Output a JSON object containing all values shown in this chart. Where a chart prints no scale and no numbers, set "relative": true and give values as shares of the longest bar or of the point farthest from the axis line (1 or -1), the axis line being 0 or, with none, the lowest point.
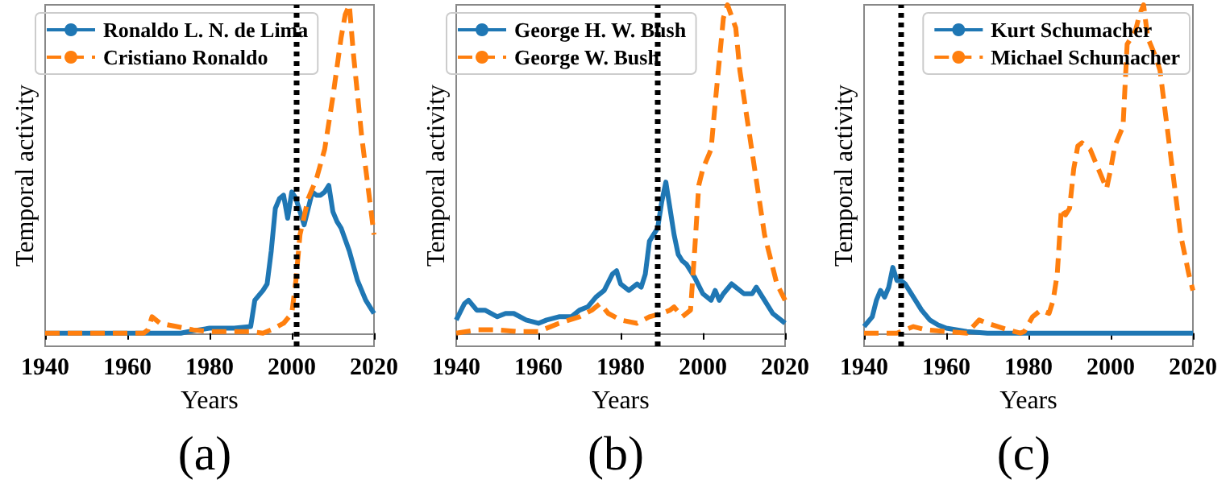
{
  "chart_data": [
    {
      "type": "line",
      "relative": true,
      "xlabel": "Years",
      "ylabel": "Temporal activity",
      "annotations": [
        "(a)"
      ],
      "xlim": [
        1940,
        2020
      ],
      "xticks": [
        1940,
        1960,
        1980,
        2000,
        2020
      ],
      "grid": false,
      "legend": "top left",
      "ref_lines": [
        {
          "axis": "x",
          "value": 2001,
          "color": "#000000",
          "line_style": "dotted"
        }
      ],
      "series": [
        {
          "name": "Ronaldo L. N. de Lima",
          "color": "#1f77b4",
          "line_style": "solid",
          "x": [
            1940,
            1973,
            1975,
            1980,
            1986,
            1990,
            1991,
            1993,
            1994,
            1995,
            1996,
            1997,
            1998,
            1999,
            2000,
            2001,
            2002,
            2003,
            2004,
            2005,
            2006,
            2007,
            2008,
            2009,
            2010,
            2011,
            2012,
            2014,
            2016,
            2018,
            2020
          ],
          "values": [
            0,
            0,
            0.005,
            0.015,
            0.015,
            0.02,
            0.1,
            0.13,
            0.15,
            0.25,
            0.38,
            0.41,
            0.42,
            0.35,
            0.43,
            0.41,
            0.37,
            0.33,
            0.38,
            0.43,
            0.42,
            0.42,
            0.43,
            0.45,
            0.37,
            0.34,
            0.32,
            0.25,
            0.16,
            0.1,
            0.06
          ]
        },
        {
          "name": "Cristiano Ronaldo",
          "color": "#ff7f0e",
          "line_style": "dashed",
          "x": [
            1940,
            1964,
            1965,
            1966,
            1968,
            1972,
            1976,
            1980,
            1985,
            1990,
            1993,
            1995,
            1998,
            2000,
            2001,
            2002,
            2004,
            2006,
            2008,
            2010,
            2012,
            2013,
            2014,
            2015,
            2017,
            2019,
            2020
          ],
          "values": [
            0,
            0,
            0.01,
            0.05,
            0.03,
            0.02,
            0.01,
            0.005,
            0.005,
            0.005,
            0,
            0.01,
            0.03,
            0.06,
            0.16,
            0.3,
            0.41,
            0.47,
            0.56,
            0.72,
            0.9,
            0.97,
            1,
            0.85,
            0.6,
            0.4,
            0.3
          ]
        }
      ]
    },
    {
      "type": "line",
      "relative": true,
      "xlabel": "Years",
      "ylabel": "Temporal activity",
      "annotations": [
        "(b)"
      ],
      "xlim": [
        1940,
        2020
      ],
      "xticks": [
        1940,
        1960,
        1980,
        2000,
        2020
      ],
      "grid": false,
      "legend": "top left",
      "ref_lines": [
        {
          "axis": "x",
          "value": 1989,
          "color": "#000000",
          "line_style": "dotted"
        }
      ],
      "series": [
        {
          "name": "George H. W. Bush",
          "color": "#1f77b4",
          "line_style": "solid",
          "x": [
            1940,
            1942,
            1943,
            1945,
            1947,
            1950,
            1952,
            1954,
            1957,
            1960,
            1962,
            1965,
            1968,
            1970,
            1972,
            1974,
            1976,
            1978,
            1979,
            1980,
            1982,
            1984,
            1985,
            1986,
            1987,
            1988,
            1989,
            1990,
            1991,
            1992,
            1993,
            1994,
            1995,
            1996,
            1998,
            2000,
            2002,
            2003,
            2004,
            2005,
            2007,
            2008,
            2010,
            2012,
            2013,
            2015,
            2017,
            2020
          ],
          "values": [
            0.04,
            0.09,
            0.1,
            0.07,
            0.07,
            0.05,
            0.06,
            0.06,
            0.04,
            0.03,
            0.04,
            0.05,
            0.05,
            0.07,
            0.08,
            0.11,
            0.13,
            0.18,
            0.19,
            0.15,
            0.13,
            0.15,
            0.14,
            0.18,
            0.28,
            0.3,
            0.32,
            0.4,
            0.46,
            0.38,
            0.3,
            0.24,
            0.22,
            0.21,
            0.17,
            0.12,
            0.1,
            0.13,
            0.1,
            0.12,
            0.15,
            0.14,
            0.12,
            0.12,
            0.14,
            0.1,
            0.06,
            0.03
          ]
        },
        {
          "name": "George W. Bush",
          "color": "#ff7f0e",
          "line_style": "dashed",
          "x": [
            1940,
            1945,
            1950,
            1955,
            1960,
            1965,
            1970,
            1973,
            1975,
            1977,
            1980,
            1984,
            1987,
            1990,
            1992,
            1993,
            1995,
            1997,
            1998,
            1999,
            2000,
            2002,
            2003,
            2005,
            2006,
            2008,
            2009,
            2012,
            2015,
            2018,
            2020
          ],
          "values": [
            0,
            0.01,
            0.01,
            0.005,
            0.005,
            0.03,
            0.05,
            0.07,
            0.09,
            0.06,
            0.04,
            0.03,
            0.05,
            0.06,
            0.07,
            0.08,
            0.05,
            0.07,
            0.25,
            0.45,
            0.5,
            0.56,
            0.7,
            0.96,
            1,
            0.93,
            0.8,
            0.55,
            0.3,
            0.15,
            0.1
          ]
        }
      ]
    },
    {
      "type": "line",
      "relative": true,
      "xlabel": "Years",
      "ylabel": "Temporal activity",
      "annotations": [
        "(c)"
      ],
      "xlim": [
        1940,
        2020
      ],
      "xticks": [
        1940,
        1960,
        1980,
        2000,
        2020
      ],
      "grid": false,
      "legend": "top right",
      "ref_lines": [
        {
          "axis": "x",
          "value": 1949,
          "color": "#000000",
          "line_style": "dotted"
        }
      ],
      "series": [
        {
          "name": "Kurt Schumacher",
          "color": "#1f77b4",
          "line_style": "solid",
          "x": [
            1940,
            1942,
            1943,
            1944,
            1945,
            1946,
            1947,
            1948,
            1949,
            1950,
            1952,
            1954,
            1956,
            1958,
            1960,
            1965,
            1970,
            2020
          ],
          "values": [
            0.02,
            0.05,
            0.1,
            0.13,
            0.11,
            0.14,
            0.2,
            0.16,
            0.16,
            0.15,
            0.11,
            0.07,
            0.04,
            0.025,
            0.015,
            0.005,
            0,
            0
          ]
        },
        {
          "name": "Michael Schumacher",
          "color": "#ff7f0e",
          "line_style": "dashed",
          "x": [
            1940,
            1948,
            1952,
            1955,
            1960,
            1965,
            1968,
            1970,
            1975,
            1978,
            1979,
            1981,
            1983,
            1985,
            1986,
            1987,
            1988,
            1989,
            1990,
            1991,
            1992,
            1993,
            1995,
            1997,
            1999,
            2000,
            2001,
            2002,
            2003,
            2004,
            2006,
            2007,
            2008,
            2009,
            2011,
            2012,
            2013,
            2015,
            2017,
            2019,
            2020
          ],
          "values": [
            0,
            0,
            0.02,
            0.01,
            0.005,
            0,
            0.04,
            0.03,
            0.01,
            0,
            0.005,
            0.05,
            0.07,
            0.06,
            0.1,
            0.18,
            0.38,
            0.36,
            0.38,
            0.5,
            0.57,
            0.58,
            0.56,
            0.5,
            0.44,
            0.5,
            0.57,
            0.6,
            0.63,
            0.88,
            0.92,
            0.97,
            1,
            0.9,
            0.84,
            0.8,
            0.7,
            0.5,
            0.3,
            0.18,
            0.13
          ]
        }
      ]
    }
  ]
}
